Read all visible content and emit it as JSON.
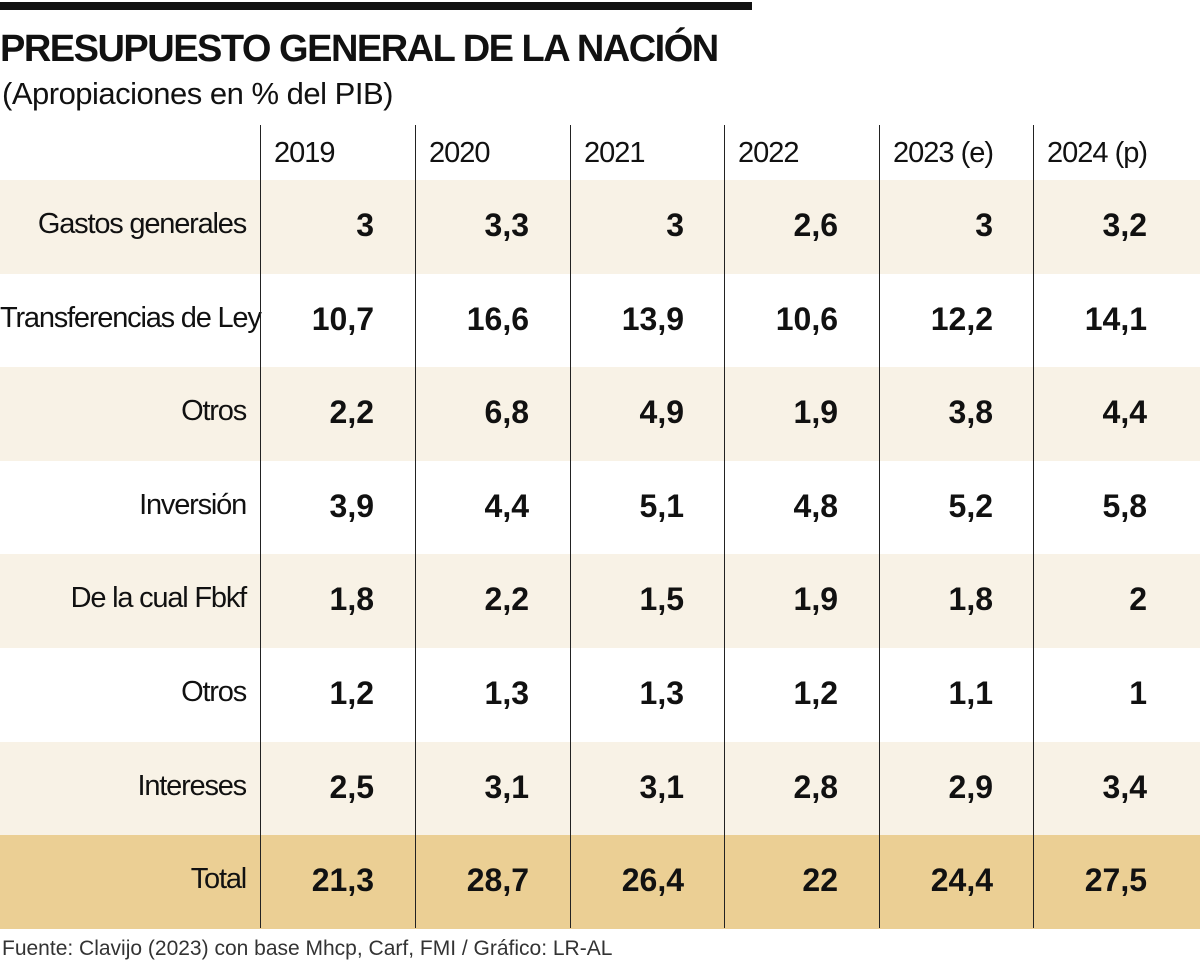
{
  "header": {
    "title": "PRESUPUESTO GENERAL DE LA NACIÓN",
    "subtitle": "(Apropiaciones en % del PIB)"
  },
  "table": {
    "columns": [
      "2019",
      "2020",
      "2021",
      "2022",
      "2023 (e)",
      "2024 (p)"
    ],
    "rows": [
      [
        "Gastos generales",
        "3",
        "3,3",
        "3",
        "2,6",
        "3",
        "3,2"
      ],
      [
        "Transferencias de Ley",
        "10,7",
        "16,6",
        "13,9",
        "10,6",
        "12,2",
        "14,1"
      ],
      [
        "Otros",
        "2,2",
        "6,8",
        "4,9",
        "1,9",
        "3,8",
        "4,4"
      ],
      [
        "Inversión",
        "3,9",
        "4,4",
        "5,1",
        "4,8",
        "5,2",
        "5,8"
      ],
      [
        "De la cual Fbkf",
        "1,8",
        "2,2",
        "1,5",
        "1,9",
        "1,8",
        "2"
      ],
      [
        "Otros",
        "1,2",
        "1,3",
        "1,3",
        "1,2",
        "1,1",
        "1"
      ],
      [
        "Intereses",
        "2,5",
        "3,1",
        "3,1",
        "2,8",
        "2,9",
        "3,4"
      ],
      [
        "Total",
        "21,3",
        "28,7",
        "26,4",
        "22",
        "24,4",
        "27,5"
      ]
    ]
  },
  "footer": {
    "source": "Fuente: Clavijo (2023) con base Mhcp, Carf, FMI / Gráfico: LR-AL"
  }
}
